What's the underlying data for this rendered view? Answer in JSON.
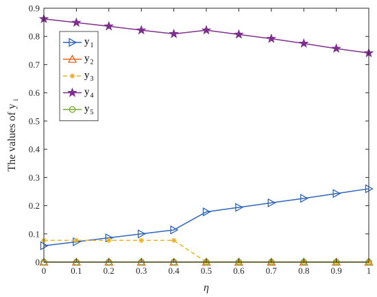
{
  "chart_data": {
    "type": "line",
    "xlabel": "η",
    "ylabel": {
      "main": "The values of y",
      "sub": "i"
    },
    "xlim": [
      0,
      1
    ],
    "ylim": [
      0,
      0.9
    ],
    "xticks": [
      0,
      0.1,
      0.2,
      0.3,
      0.4,
      0.5,
      0.6,
      0.7,
      0.8,
      0.9,
      1
    ],
    "xtick_labels": [
      "0",
      "0.1",
      "0.2",
      "0.3",
      "0.4",
      "0.5",
      "0.6",
      "0.7",
      "0.8",
      "0.9",
      "1"
    ],
    "yticks": [
      0,
      0.1,
      0.2,
      0.3,
      0.4,
      0.5,
      0.6,
      0.7,
      0.8,
      0.9
    ],
    "ytick_labels": [
      "0",
      "0.1",
      "0.2",
      "0.3",
      "0.4",
      "0.5",
      "0.6",
      "0.7",
      "0.8",
      "0.9"
    ],
    "grid": false,
    "legend_position": "upper-left",
    "x": [
      0,
      0.1,
      0.2,
      0.3,
      0.4,
      0.5,
      0.6,
      0.7,
      0.8,
      0.9,
      1
    ],
    "series": [
      {
        "name": "y",
        "sub": "1",
        "color": "#2e64b8",
        "marker": "triangle-right",
        "dash": "solid",
        "values": [
          0.058,
          0.072,
          0.086,
          0.1,
          0.114,
          0.178,
          0.194,
          0.21,
          0.226,
          0.243,
          0.26
        ]
      },
      {
        "name": "y",
        "sub": "2",
        "color": "#e8621e",
        "marker": "triangle-up",
        "dash": "solid",
        "values": [
          0,
          0,
          0,
          0,
          0,
          0,
          0,
          0,
          0,
          0,
          0
        ]
      },
      {
        "name": "y",
        "sub": "3",
        "color": "#edb120",
        "marker": "asterisk",
        "dash": "dashed",
        "values": [
          0.077,
          0.077,
          0.077,
          0.077,
          0.077,
          0,
          0,
          0,
          0,
          0,
          0
        ]
      },
      {
        "name": "y",
        "sub": "4",
        "color": "#7e2f8e",
        "marker": "star",
        "dash": "solid",
        "values": [
          0.862,
          0.849,
          0.836,
          0.822,
          0.809,
          0.822,
          0.807,
          0.792,
          0.775,
          0.757,
          0.741
        ]
      },
      {
        "name": "y",
        "sub": "5",
        "color": "#77ac30",
        "marker": "circle",
        "dash": "solid",
        "values": [
          0,
          0,
          0,
          0,
          0,
          0,
          0,
          0,
          0,
          0,
          0
        ]
      }
    ]
  }
}
